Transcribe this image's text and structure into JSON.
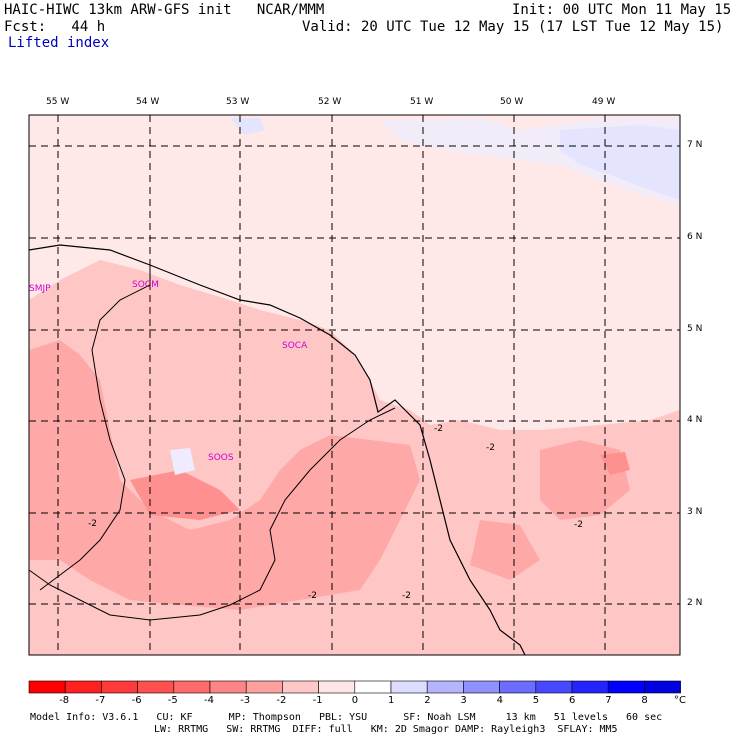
{
  "header": {
    "line1_left": "HAIC-HIWC 13km ARW-GFS init   NCAR/MMM",
    "line1_right": "Init: 00 UTC Mon 11 May 15",
    "line2_left": "Fcst:   44 h",
    "line2_right": "Valid: 20 UTC Tue 12 May 15 (17 LST Tue 12 May 15)",
    "field_name": "Lifted index"
  },
  "axes": {
    "lon_labels": [
      "55 W",
      "54 W",
      "53 W",
      "52 W",
      "51 W",
      "50 W",
      "49 W"
    ],
    "lat_labels": [
      "7 N",
      "6 N",
      "5 N",
      "4 N",
      "3 N",
      "2 N"
    ]
  },
  "stations": [
    "SMJP",
    "SOCM",
    "SOCA",
    "SOOS"
  ],
  "contour_labels": [
    "-2",
    "-2",
    "-2",
    "-2",
    "-2",
    "-2"
  ],
  "colorbar": {
    "labels": [
      "-8",
      "-7",
      "-6",
      "-5",
      "-4",
      "-3",
      "-2",
      "-1",
      "0",
      "1",
      "2",
      "3",
      "4",
      "5",
      "6",
      "7",
      "8"
    ],
    "unit": "°C",
    "colors": [
      "#ff0000",
      "#ff2020",
      "#ff3a3a",
      "#ff5050",
      "#ff6a6a",
      "#ff8585",
      "#ffa0a0",
      "#ffc8c8",
      "#ffe6e6",
      "#ffffff",
      "#dcdcff",
      "#b4b4ff",
      "#9090ff",
      "#6c6cff",
      "#4848ff",
      "#2424ff",
      "#0000ff",
      "#0000e0"
    ]
  },
  "footer": {
    "line1": "Model Info: V3.6.1   CU: KF      MP: Thompson   PBL: YSU      SF: Noah LSM     13 km   51 levels   60 sec",
    "line2": "LW: RRTMG   SW: RRTMG  DIFF: full   KM: 2D Smagor DAMP: Rayleigh3  SFLAY: MM5"
  }
}
